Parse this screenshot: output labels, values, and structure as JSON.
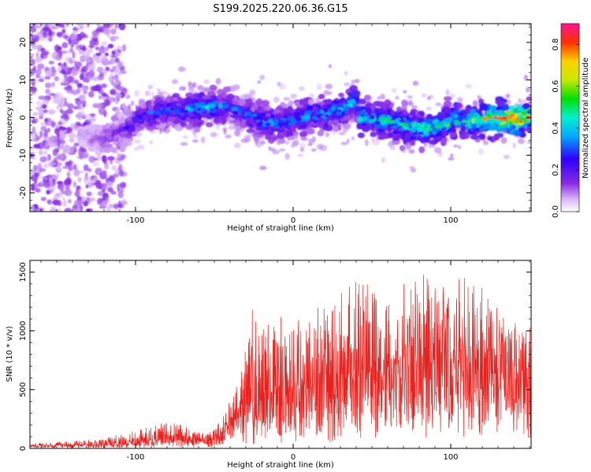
{
  "figure_title": "S199.2025.220.06.36.G15",
  "colors": {
    "snr_line": "#e8231f",
    "spectro_low": "#e6d6f7",
    "spectro_mid": "#7a22e0",
    "spectro_high": "#ff0000"
  },
  "chart_data": [
    {
      "type": "heatmap",
      "title": "",
      "xlabel": "Height of straight line (km)",
      "ylabel": "Frequency (Hz)",
      "xlim": [
        -167,
        151
      ],
      "ylim": [
        -25,
        25
      ],
      "x_ticks": [
        -100,
        0,
        100
      ],
      "y_ticks": [
        -20,
        -10,
        0,
        10,
        20
      ],
      "colorbar": {
        "label": "Normalized spectral amplitude",
        "range": [
          0,
          0.9
        ],
        "ticks": [
          "0.0",
          "0.2",
          "0.4",
          "0.6",
          "0.8"
        ],
        "colormap": "rainbow (white/violet -> blue -> cyan -> green -> yellow -> red -> magenta)"
      },
      "ridge": {
        "description": "dominant frequency trace vs height",
        "x": [
          -140,
          -125,
          -110,
          -100,
          -90,
          -80,
          -70,
          -60,
          -50,
          -40,
          -30,
          -20,
          -10,
          0,
          10,
          20,
          30,
          38,
          40,
          42,
          50,
          60,
          70,
          80,
          90,
          100,
          110,
          120,
          130,
          140,
          150
        ],
        "y": [
          -4,
          -6,
          -4,
          -1,
          1,
          2,
          2,
          2.5,
          3,
          3,
          1,
          -1,
          -1.5,
          -0.5,
          0.5,
          1,
          2,
          4,
          6,
          0,
          0,
          -1,
          -2,
          -3,
          -2.5,
          -1,
          -1,
          -0.5,
          0,
          -0.5,
          0
        ],
        "peak_amplitude": [
          0.05,
          0.12,
          0.2,
          0.25,
          0.3,
          0.3,
          0.35,
          0.4,
          0.35,
          0.3,
          0.3,
          0.35,
          0.35,
          0.35,
          0.35,
          0.4,
          0.4,
          0.4,
          0.35,
          0.45,
          0.45,
          0.45,
          0.45,
          0.5,
          0.5,
          0.5,
          0.55,
          0.6,
          0.75,
          0.85,
          0.7
        ]
      }
    },
    {
      "type": "line",
      "title": "",
      "xlabel": "Height of straight line (km)",
      "ylabel": "SNR (10 * v/v)",
      "xlim": [
        -167,
        151
      ],
      "ylim": [
        0,
        1600
      ],
      "x_ticks": [
        -100,
        0,
        100
      ],
      "y_ticks": [
        0,
        500,
        1000,
        1500
      ],
      "series": [
        {
          "envelope": {
            "x": [
              -167,
              -140,
              -120,
              -100,
              -90,
              -80,
              -70,
              -60,
              -55,
              -50,
              -45,
              -40,
              -35,
              -30,
              -25,
              -20,
              -10,
              0,
              10,
              20,
              30,
              40,
              50,
              60,
              70,
              80,
              90,
              100,
              110,
              120,
              130,
              140,
              150
            ],
            "upper": [
              40,
              60,
              90,
              150,
              190,
              230,
              200,
              150,
              140,
              160,
              300,
              450,
              700,
              900,
              1250,
              1000,
              1150,
              1100,
              1150,
              1300,
              1350,
              1450,
              1400,
              1250,
              1400,
              1500,
              1450,
              1300,
              1600,
              1250,
              1150,
              1050,
              1000
            ],
            "baseline": [
              15,
              20,
              25,
              30,
              40,
              50,
              50,
              45,
              40,
              60,
              90,
              150,
              200,
              220,
              250,
              280,
              300,
              320,
              330,
              350,
              380,
              420,
              420,
              430,
              440,
              480,
              500,
              500,
              520,
              520,
              520,
              530,
              520
            ]
          }
        }
      ]
    }
  ]
}
